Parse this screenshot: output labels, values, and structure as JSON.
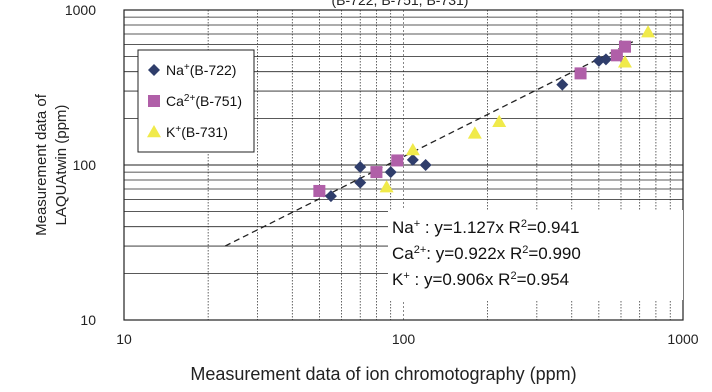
{
  "chart_data": {
    "type": "scatter",
    "title": "(B-722, B-751, B-731)",
    "xlabel": "Measurement data of ion chromotography (ppm)",
    "ylabel": [
      "Measurement data of",
      "LAQUAtwin (ppm)"
    ],
    "xscale": "log",
    "yscale": "log",
    "xlim": [
      10,
      1000
    ],
    "ylim": [
      10,
      1000
    ],
    "x_ticks": [
      "10",
      "100",
      "1000"
    ],
    "y_ticks": [
      "10",
      "100",
      "1000"
    ],
    "grid": true,
    "legend_position": "top-left",
    "series": [
      {
        "name": "Na+(B-722)",
        "label_base": "Na",
        "label_sup": "+",
        "label_suffix": "(B-722)",
        "marker": "diamond",
        "color": "#2f3d6b",
        "x": [
          55,
          70,
          70,
          90,
          108,
          120,
          370,
          500,
          530
        ],
        "y": [
          63,
          77,
          97,
          90,
          108,
          100,
          330,
          470,
          480
        ]
      },
      {
        "name": "Ca2+(B-751)",
        "label_base": "Ca",
        "label_sup": "2+",
        "label_suffix": "(B-751)",
        "marker": "square",
        "color": "#b05fa8",
        "x": [
          50,
          80,
          95,
          430,
          580,
          620
        ],
        "y": [
          68,
          90,
          107,
          390,
          510,
          580
        ]
      },
      {
        "name": "K+(B-731)",
        "label_base": "K",
        "label_sup": "+",
        "label_suffix": "(B-731)",
        "marker": "triangle",
        "color": "#f0ea4a",
        "x": [
          87,
          108,
          180,
          220,
          620,
          750
        ],
        "y": [
          72,
          125,
          160,
          190,
          460,
          720
        ]
      }
    ],
    "trendline": {
      "style": "dashed",
      "x": [
        23,
        680
      ],
      "y": [
        30,
        640
      ]
    },
    "annotations": [
      {
        "ion": "Na",
        "sup": "+",
        "sep": " : ",
        "equation": "y=1.127x",
        "r2_label": "R",
        "r2_sup": "2",
        "r2_value": "=0.941"
      },
      {
        "ion": "Ca",
        "sup": "2+",
        "sep": ": ",
        "equation": "y=0.922x",
        "r2_label": "R",
        "r2_sup": "2",
        "r2_value": "=0.990"
      },
      {
        "ion": "K",
        "sup": "+",
        "sep": "   : ",
        "equation": "y=0.906x",
        "r2_label": "R",
        "r2_sup": "2",
        "r2_value": "=0.954"
      }
    ]
  }
}
